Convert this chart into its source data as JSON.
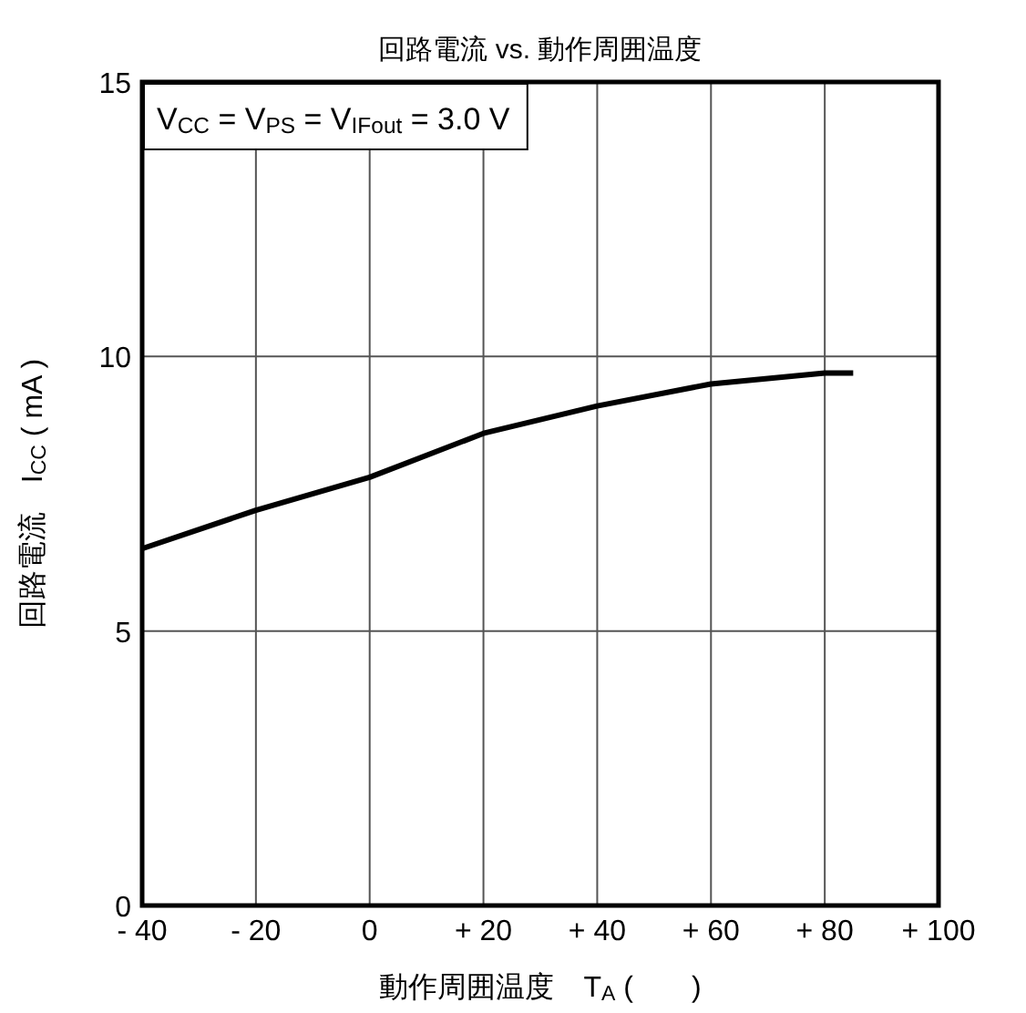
{
  "chart_data": {
    "type": "line",
    "title": "回路電流 vs. 動作周囲温度",
    "xlabel": "動作周囲温度　T$_{A}$ (　　)",
    "ylabel": "回路電流　I$_{CC}$ ( mA )",
    "annotations": [
      "V$_{CC}$ = V$_{PS}$ = V$_{IFout}$ = 3.0 V"
    ],
    "series": [
      {
        "color": "#000000",
        "x": [
          -40,
          -20,
          0,
          20,
          40,
          60,
          80,
          85
        ],
        "values": [
          6.5,
          7.2,
          7.8,
          8.6,
          9.1,
          9.5,
          9.7,
          9.7
        ]
      }
    ],
    "xlim": [
      -40,
      100
    ],
    "xticks": [
      {
        "value": -40,
        "label": "- 40"
      },
      {
        "value": -20,
        "label": "- 20"
      },
      0,
      {
        "value": 20,
        "label": "+ 20"
      },
      {
        "value": 40,
        "label": "+ 40"
      },
      {
        "value": 60,
        "label": "+ 60"
      },
      {
        "value": 80,
        "label": "+ 80"
      },
      {
        "value": 100,
        "label": "+ 100"
      }
    ],
    "ylim": [
      0,
      15
    ],
    "yticks": [
      0,
      5,
      10,
      15
    ],
    "grid": true,
    "marker": "none",
    "line_style": "solid"
  }
}
